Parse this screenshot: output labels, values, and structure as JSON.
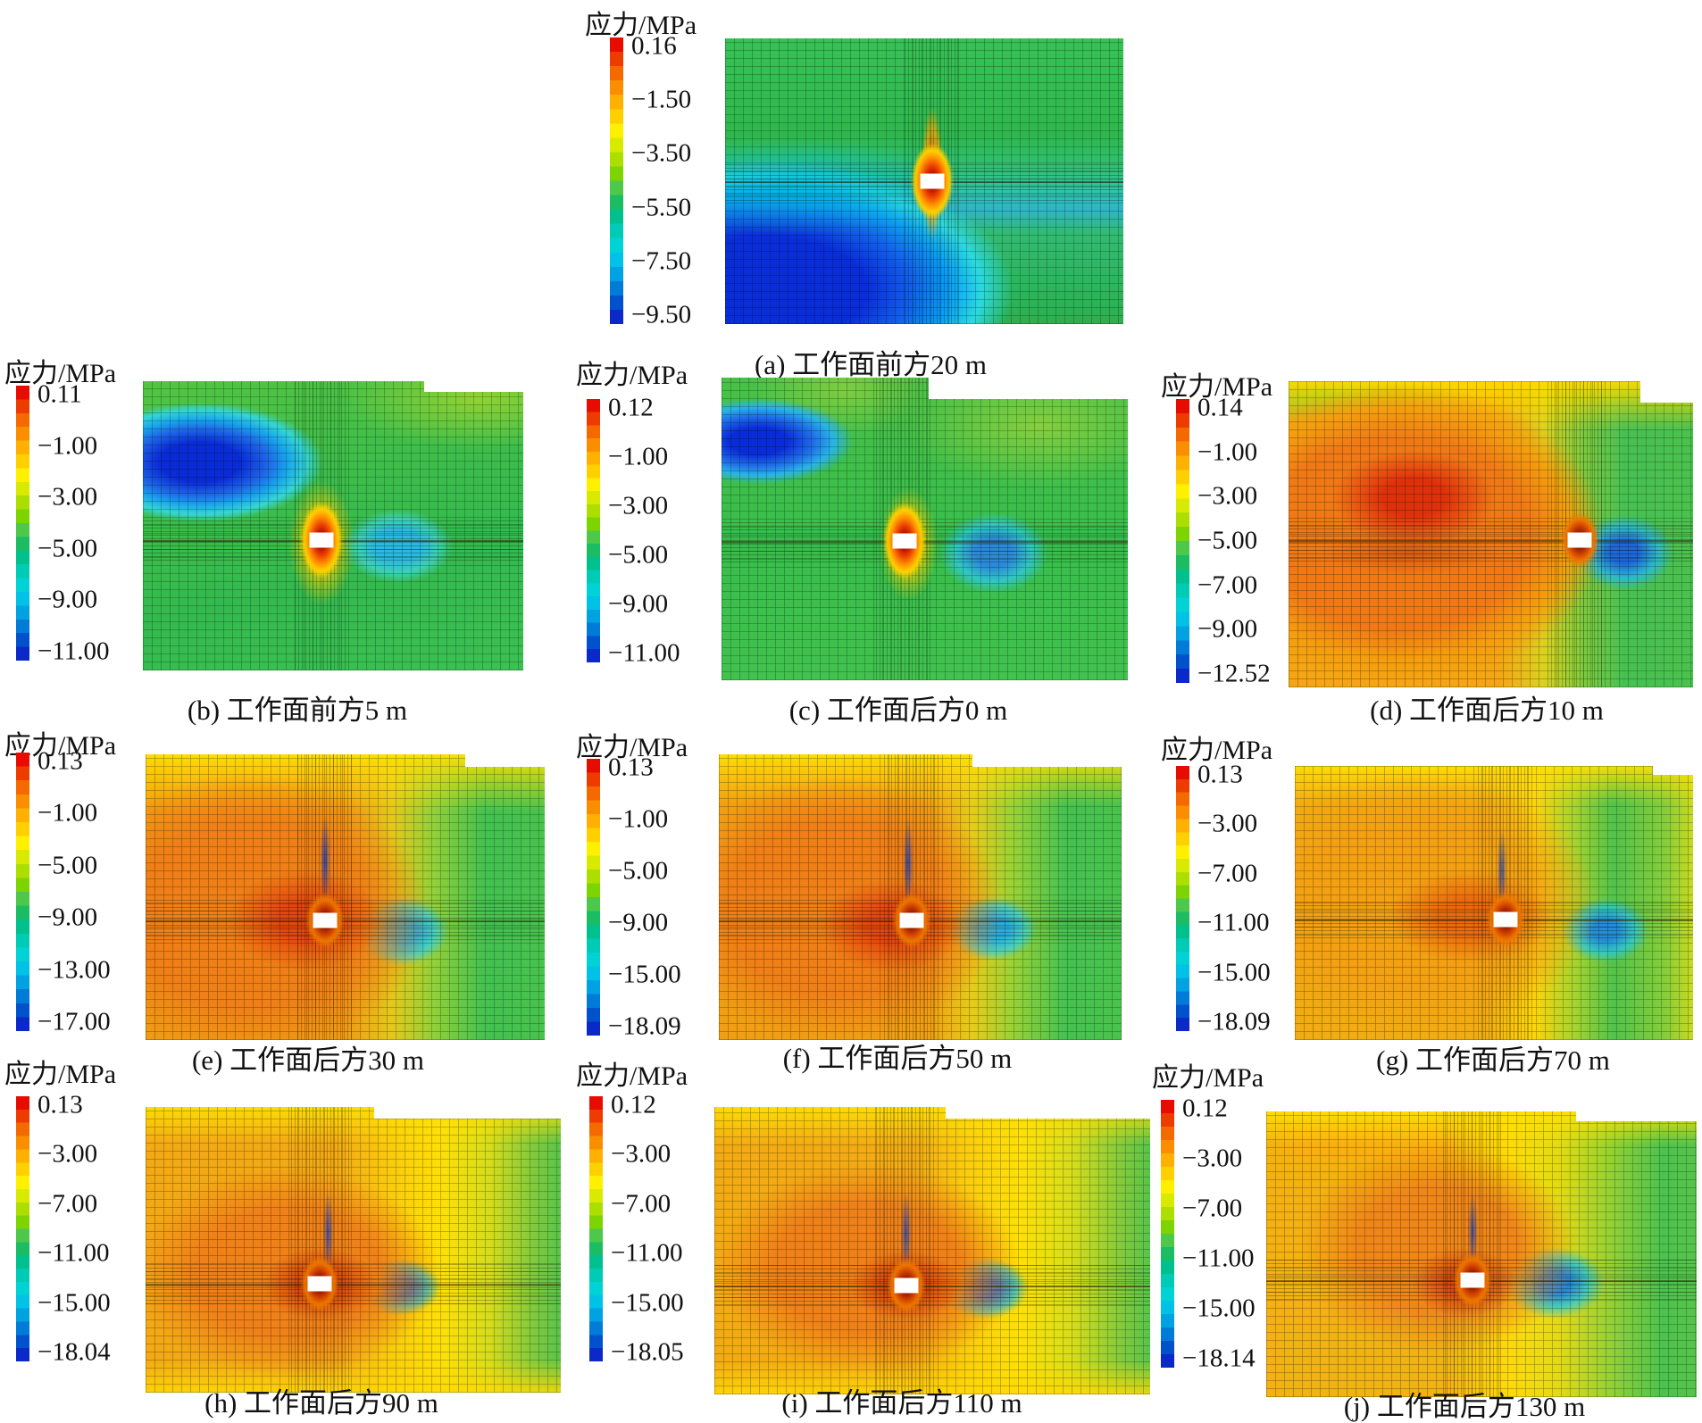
{
  "legend_title": "应力/MPa",
  "colormap_note": "rainbow: red = maximum stress, blue = minimum stress",
  "panels": [
    {
      "id": "a",
      "caption": "(a)  工作面前方20 m",
      "ticks": [
        "0.16",
        "−1.50",
        "−3.50",
        "−5.50",
        "−7.50",
        "−9.50"
      ]
    },
    {
      "id": "b",
      "caption": "(b)  工作面前方5 m",
      "ticks": [
        "0.11",
        "−1.00",
        "−3.00",
        "−5.00",
        "−9.00",
        "−11.00"
      ]
    },
    {
      "id": "c",
      "caption": "(c)  工作面后方0 m",
      "ticks": [
        "0.12",
        "−1.00",
        "−3.00",
        "−5.00",
        "−9.00",
        "−11.00"
      ]
    },
    {
      "id": "d",
      "caption": "(d)  工作面后方10 m",
      "ticks": [
        "0.14",
        "−1.00",
        "−3.00",
        "−5.00",
        "−7.00",
        "−9.00",
        "−12.52"
      ]
    },
    {
      "id": "e",
      "caption": "(e)  工作面后方30 m",
      "ticks": [
        "0.13",
        "−1.00",
        "−5.00",
        "−9.00",
        "−13.00",
        "−17.00"
      ]
    },
    {
      "id": "f",
      "caption": "(f)  工作面后方50 m",
      "ticks": [
        "0.13",
        "−1.00",
        "−5.00",
        "−9.00",
        "−15.00",
        "−18.09"
      ]
    },
    {
      "id": "g",
      "caption": "(g)  工作面后方70 m",
      "ticks": [
        "0.13",
        "−3.00",
        "−7.00",
        "−11.00",
        "−15.00",
        "−18.09"
      ]
    },
    {
      "id": "h",
      "caption": "(h)  工作面后方90 m",
      "ticks": [
        "0.13",
        "−3.00",
        "−7.00",
        "−11.00",
        "−15.00",
        "−18.04"
      ]
    },
    {
      "id": "i",
      "caption": "(i)  工作面后方110 m",
      "ticks": [
        "0.12",
        "−3.00",
        "−7.00",
        "−11.00",
        "−15.00",
        "−18.05"
      ]
    },
    {
      "id": "j",
      "caption": "(j)  工作面后方130 m",
      "ticks": [
        "0.12",
        "−3.00",
        "−7.00",
        "−11.00",
        "−15.00",
        "−18.14"
      ]
    }
  ],
  "chart_data": [
    {
      "type": "contour",
      "panel": "a",
      "caption": "(a) 工作面前方20 m",
      "location": "工作面前方20 m",
      "legend_title": "应力/MPa",
      "unit": "MPa",
      "levels": [
        0.16,
        -1.5,
        -3.5,
        -5.5,
        -7.5,
        -9.5
      ],
      "stress_max_mpa": 0.16,
      "stress_min_mpa": -9.5
    },
    {
      "type": "contour",
      "panel": "b",
      "caption": "(b) 工作面前方5 m",
      "location": "工作面前方5 m",
      "legend_title": "应力/MPa",
      "unit": "MPa",
      "levels": [
        0.11,
        -1.0,
        -3.0,
        -5.0,
        -9.0,
        -11.0
      ],
      "stress_max_mpa": 0.11,
      "stress_min_mpa": -11.0
    },
    {
      "type": "contour",
      "panel": "c",
      "caption": "(c) 工作面后方0 m",
      "location": "工作面后方0 m",
      "legend_title": "应力/MPa",
      "unit": "MPa",
      "levels": [
        0.12,
        -1.0,
        -3.0,
        -5.0,
        -9.0,
        -11.0
      ],
      "stress_max_mpa": 0.12,
      "stress_min_mpa": -11.0
    },
    {
      "type": "contour",
      "panel": "d",
      "caption": "(d) 工作面后方10 m",
      "location": "工作面后方10 m",
      "legend_title": "应力/MPa",
      "unit": "MPa",
      "levels": [
        0.14,
        -1.0,
        -3.0,
        -5.0,
        -7.0,
        -9.0,
        -12.52
      ],
      "stress_max_mpa": 0.14,
      "stress_min_mpa": -12.52
    },
    {
      "type": "contour",
      "panel": "e",
      "caption": "(e) 工作面后方30 m",
      "location": "工作面后方30 m",
      "legend_title": "应力/MPa",
      "unit": "MPa",
      "levels": [
        0.13,
        -1.0,
        -5.0,
        -9.0,
        -13.0,
        -17.0
      ],
      "stress_max_mpa": 0.13,
      "stress_min_mpa": -17.0
    },
    {
      "type": "contour",
      "panel": "f",
      "caption": "(f) 工作面后方50 m",
      "location": "工作面后方50 m",
      "legend_title": "应力/MPa",
      "unit": "MPa",
      "levels": [
        0.13,
        -1.0,
        -5.0,
        -9.0,
        -15.0,
        -18.09
      ],
      "stress_max_mpa": 0.13,
      "stress_min_mpa": -18.09
    },
    {
      "type": "contour",
      "panel": "g",
      "caption": "(g) 工作面后方70 m",
      "location": "工作面后方70 m",
      "legend_title": "应力/MPa",
      "unit": "MPa",
      "levels": [
        0.13,
        -3.0,
        -7.0,
        -11.0,
        -15.0,
        -18.09
      ],
      "stress_max_mpa": 0.13,
      "stress_min_mpa": -18.09
    },
    {
      "type": "contour",
      "panel": "h",
      "caption": "(h) 工作面后方90 m",
      "location": "工作面后方90 m",
      "legend_title": "应力/MPa",
      "unit": "MPa",
      "levels": [
        0.13,
        -3.0,
        -7.0,
        -11.0,
        -15.0,
        -18.04
      ],
      "stress_max_mpa": 0.13,
      "stress_min_mpa": -18.04
    },
    {
      "type": "contour",
      "panel": "i",
      "caption": "(i) 工作面后方110 m",
      "location": "工作面后方110 m",
      "legend_title": "应力/MPa",
      "unit": "MPa",
      "levels": [
        0.12,
        -3.0,
        -7.0,
        -11.0,
        -15.0,
        -18.05
      ],
      "stress_max_mpa": 0.12,
      "stress_min_mpa": -18.05
    },
    {
      "type": "contour",
      "panel": "j",
      "caption": "(j) 工作面后方130 m",
      "location": "工作面后方130 m",
      "legend_title": "应力/MPa",
      "unit": "MPa",
      "levels": [
        0.12,
        -3.0,
        -7.0,
        -11.0,
        -15.0,
        -18.14
      ],
      "stress_max_mpa": 0.12,
      "stress_min_mpa": -18.14
    }
  ]
}
